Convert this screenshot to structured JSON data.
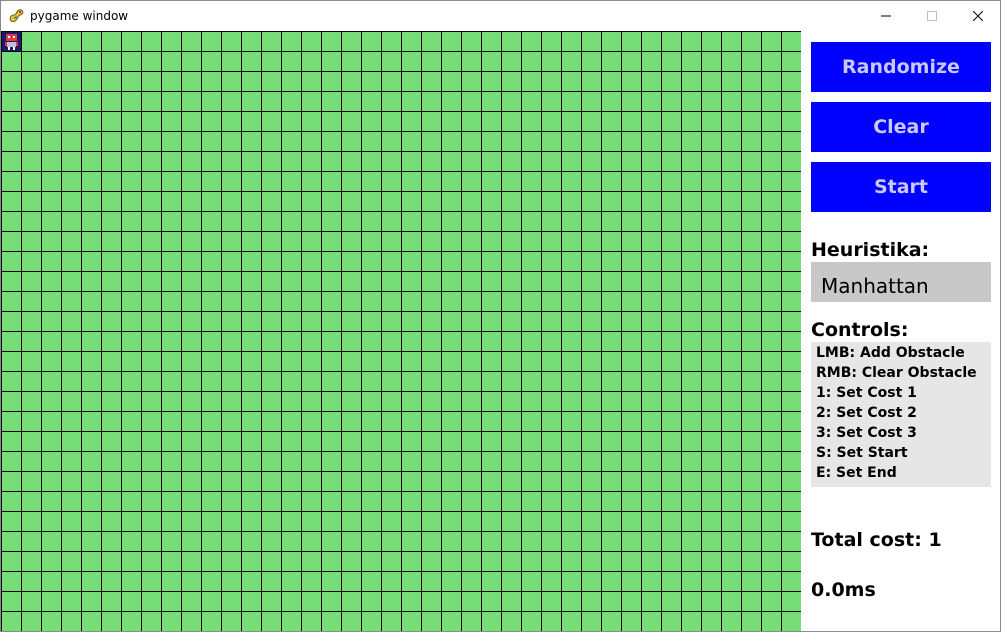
{
  "window": {
    "title": "pygame window",
    "app_icon": "pygame-snake-icon",
    "controls": {
      "minimize_icon": "minimize-icon",
      "maximize_icon": "maximize-icon",
      "close_icon": "close-icon"
    }
  },
  "grid": {
    "columns": 40,
    "rows": 30,
    "cell_color": "#77dd77",
    "line_color": "#000000",
    "start_marker_icon": "robot-icon",
    "start_cell": [
      0,
      0
    ]
  },
  "panel": {
    "buttons": {
      "randomize": "Randomize",
      "clear": "Clear",
      "start": "Start",
      "color": "#0000ff",
      "text_color": "#c8c8ff"
    },
    "heuristic": {
      "label": "Heuristika:",
      "value": "Manhattan"
    },
    "controls": {
      "label": "Controls:",
      "lines": [
        "LMB: Add Obstacle",
        "RMB: Clear Obstacle",
        "1: Set Cost 1",
        "2: Set Cost 2",
        "3: Set Cost 3",
        "S: Set Start",
        "E: Set End"
      ]
    },
    "total_cost": "Total cost: 1",
    "time": "0.0ms"
  }
}
